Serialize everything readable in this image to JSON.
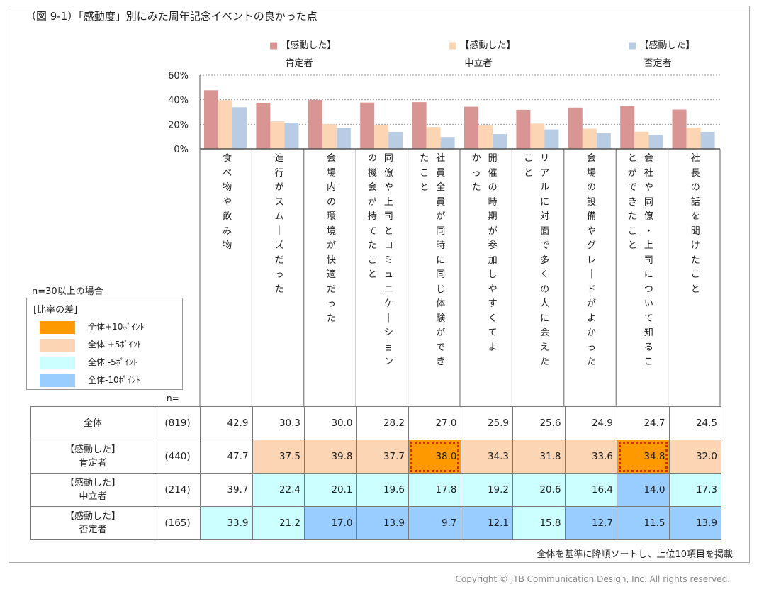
{
  "title": "（図 9-1）「感動度」別にみた周年記念イベントの良かった点",
  "legend": [
    {
      "label": "■【感動した】",
      "group": "肯定者",
      "color": "#d99594"
    },
    {
      "label": "■【感動した】",
      "group": "中立者",
      "color": "#fcd5b4"
    },
    {
      "label": "■【感動した】",
      "group": "否定者",
      "color": "#b8cce4"
    }
  ],
  "chart_data": {
    "type": "bar",
    "ylim": [
      0,
      60
    ],
    "yticks": [
      "0%",
      "20%",
      "40%",
      "60%"
    ],
    "categories": [
      "食べ物や飲み物",
      "進行がスムーズだった",
      "会場内の環境が快適だった",
      "同僚や上司とコミュニケーションの機会が持てたこと",
      "社員全員が同時に同じ体験ができたこと",
      "開催の時期が参加しやすくてよかった",
      "リアルに対面で多くの人に会えたこと",
      "会場の設備やグレードがよかった",
      "会社や同僚・上司について知ることができたこと",
      "社長の話を聞けたこと"
    ],
    "category_columns": [
      [
        "食べ物や飲み物"
      ],
      [
        "進行がスムーズだった"
      ],
      [
        "会場内の環境が快適だった"
      ],
      [
        "同僚や上司とコミュニケーション",
        "の機会が持てたこと"
      ],
      [
        "社員全員が同時に同じ体験ができ",
        "たこと"
      ],
      [
        "開催の時期が参加しやすくてよ",
        "かった"
      ],
      [
        "リアルに対面で多くの人に会えた",
        "こと"
      ],
      [
        "会場の設備やグレードがよかった"
      ],
      [
        "会社や同僚・上司について知るこ",
        "とができたこと"
      ],
      [
        "社長の話を聞けたこと"
      ]
    ],
    "series": [
      {
        "name": "【感動した】肯定者",
        "color": "#d99594",
        "values": [
          47.7,
          37.5,
          39.8,
          37.7,
          38.0,
          34.3,
          31.8,
          33.6,
          34.8,
          32.0
        ]
      },
      {
        "name": "【感動した】中立者",
        "color": "#fcd5b4",
        "values": [
          39.7,
          22.4,
          20.1,
          19.6,
          17.8,
          19.2,
          20.6,
          16.4,
          14.0,
          17.3
        ]
      },
      {
        "name": "【感動した】否定者",
        "color": "#b8cce4",
        "values": [
          33.9,
          21.2,
          17.0,
          13.9,
          9.7,
          12.1,
          15.8,
          12.7,
          11.5,
          13.9
        ]
      }
    ]
  },
  "side_legend": {
    "n_label": "n=30以上の場合",
    "title": "[比率の差]",
    "items": [
      {
        "label": "全体+10ﾎﾟｲﾝﾄ",
        "color": "#ff9900"
      },
      {
        "label": "全体 +5ﾎﾟｲﾝﾄ",
        "color": "#fcd5b4"
      },
      {
        "label": "全体 -5ﾎﾟｲﾝﾄ",
        "color": "#ccffff"
      },
      {
        "label": "全体-10ﾎﾟｲﾝﾄ",
        "color": "#99ccff"
      }
    ]
  },
  "n_header": "n=",
  "table": [
    {
      "label": [
        "全体"
      ],
      "n": "(819)",
      "values": [
        "42.9",
        "30.3",
        "30.0",
        "28.2",
        "27.0",
        "25.9",
        "25.6",
        "24.9",
        "24.7",
        "24.5"
      ],
      "styles": [
        "",
        "",
        "",
        "",
        "",
        "",
        "",
        "",
        "",
        ""
      ]
    },
    {
      "label": [
        "【感動した】",
        "肯定者"
      ],
      "n": "(440)",
      "values": [
        "47.7",
        "37.5",
        "39.8",
        "37.7",
        "38.0",
        "34.3",
        "31.8",
        "33.6",
        "34.8",
        "32.0"
      ],
      "styles": [
        "",
        "p5",
        "p5",
        "p5",
        "p10h",
        "p5",
        "p5",
        "p5",
        "p10h",
        "p5"
      ]
    },
    {
      "label": [
        "【感動した】",
        "中立者"
      ],
      "n": "(214)",
      "values": [
        "39.7",
        "22.4",
        "20.1",
        "19.6",
        "17.8",
        "19.2",
        "20.6",
        "16.4",
        "14.0",
        "17.3"
      ],
      "styles": [
        "",
        "m5",
        "m5",
        "m5",
        "m5",
        "m5",
        "m5",
        "m5",
        "m10",
        "m5"
      ]
    },
    {
      "label": [
        "【感動した】",
        "否定者"
      ],
      "n": "(165)",
      "values": [
        "33.9",
        "21.2",
        "17.0",
        "13.9",
        "9.7",
        "12.1",
        "15.8",
        "12.7",
        "11.5",
        "13.9"
      ],
      "styles": [
        "m5",
        "m5",
        "m10",
        "m10",
        "m10",
        "m10",
        "m5",
        "m10",
        "m10",
        "m10"
      ]
    }
  ],
  "note": "全体を基準に降順ソートし、上位10項目を掲載",
  "copyright": "Copyright © JTB Communication Design, Inc. All rights reserved."
}
